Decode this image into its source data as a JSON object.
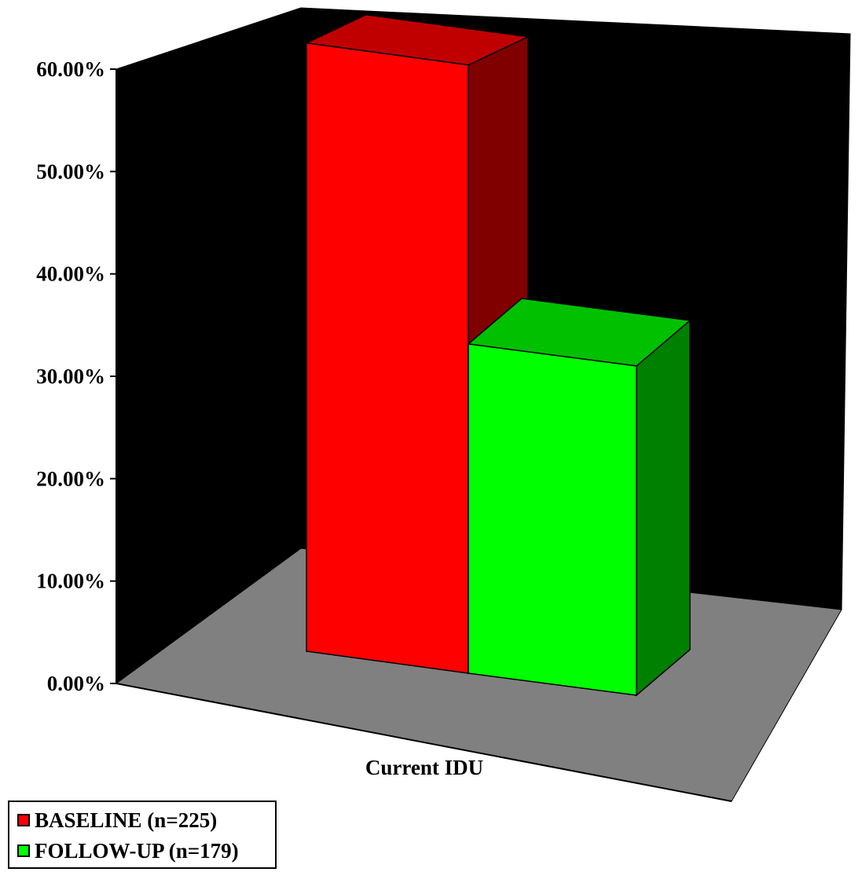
{
  "chart_data": {
    "type": "bar",
    "title": "",
    "xlabel": "",
    "ylabel": "",
    "categories": [
      "Current IDU"
    ],
    "series": [
      {
        "name": "BASELINE (n=225)",
        "values": [
          54.5
        ],
        "color": "#ff0000",
        "side_color": "#800000",
        "top_color": "#c00000"
      },
      {
        "name": "FOLLOW-UP (n=179)",
        "values": [
          29.5
        ],
        "color": "#00ff00",
        "side_color": "#008000",
        "top_color": "#00c000"
      }
    ],
    "ylim": [
      0,
      60
    ],
    "y_ticks": [
      "0.00%",
      "10.00%",
      "20.00%",
      "30.00%",
      "40.00%",
      "50.00%",
      "60.00%"
    ],
    "three_d": true,
    "back_wall_color": "#000000",
    "floor_color": "#808080",
    "legend_position": "bottom-left"
  }
}
